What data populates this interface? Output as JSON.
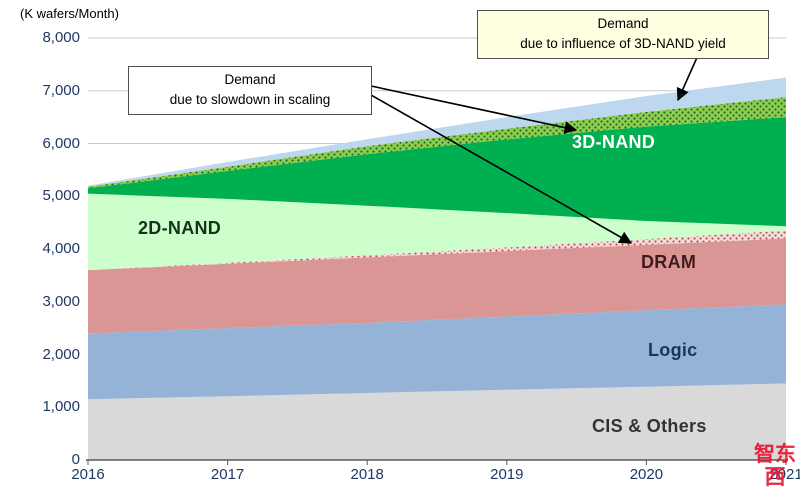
{
  "watermark": "智东西",
  "annotations": {
    "scaling": "Demand\ndue to slowdown in scaling",
    "yield": "Demand\ndue to influence of 3D-NAND yield"
  },
  "chart_data": {
    "type": "area",
    "stacked": true,
    "title": "",
    "ylabel": "(K wafers/Month)",
    "xlabel": "",
    "ylim": [
      0,
      8000
    ],
    "ytick_step": 1000,
    "grid": true,
    "legend_position": "in-plot labels",
    "x": [
      2016,
      2017,
      2018,
      2019,
      2020,
      2021
    ],
    "xticks": [
      "2016",
      "2017",
      "2018",
      "2019",
      "2020",
      "2021"
    ],
    "yticks": [
      "0",
      "1,000",
      "2,000",
      "3,000",
      "4,000",
      "5,000",
      "6,000",
      "7,000",
      "8,000"
    ],
    "series": [
      {
        "name": "CIS & Others",
        "color": "#d9d9d9",
        "values": [
          1150,
          1210,
          1270,
          1330,
          1390,
          1450
        ]
      },
      {
        "name": "Logic",
        "color": "#95b3d7",
        "values": [
          1250,
          1290,
          1330,
          1390,
          1450,
          1500
        ]
      },
      {
        "name": "DRAM",
        "color": "#d99694",
        "values": [
          1200,
          1220,
          1240,
          1240,
          1240,
          1250
        ]
      },
      {
        "name": "Demand due to slowdown in scaling (DRAM)",
        "color": "pattern-red-dots",
        "values": [
          0,
          20,
          40,
          70,
          110,
          150
        ]
      },
      {
        "name": "2D-NAND",
        "color": "#ccffcc",
        "values": [
          1450,
          1210,
          940,
          650,
          340,
          80
        ]
      },
      {
        "name": "3D-NAND",
        "color": "#00b050",
        "values": [
          100,
          530,
          980,
          1400,
          1790,
          2070
        ]
      },
      {
        "name": "Demand due to slowdown in scaling (NAND)",
        "color": "pattern-green-dots",
        "values": [
          30,
          80,
          150,
          200,
          280,
          380
        ]
      },
      {
        "name": "Demand due to influence of 3D-NAND yield",
        "color": "#bdd7ee",
        "values": [
          20,
          90,
          130,
          220,
          300,
          370
        ]
      }
    ]
  }
}
